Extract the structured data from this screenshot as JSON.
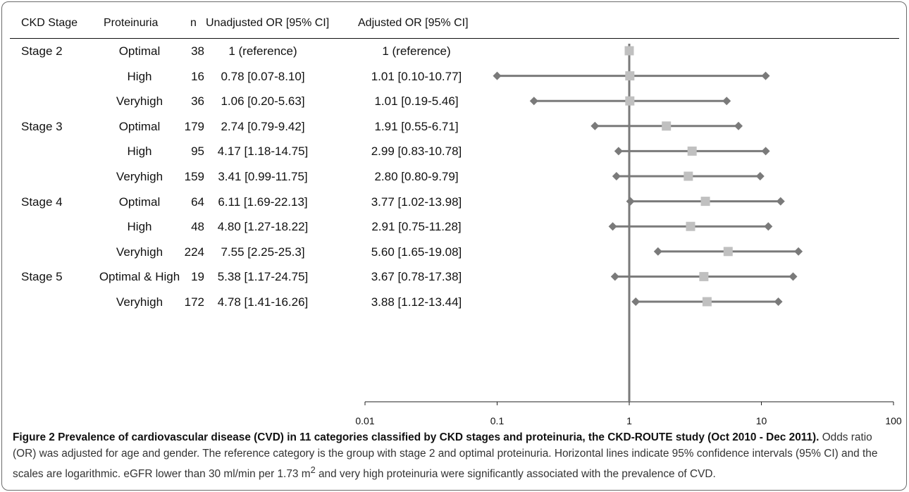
{
  "headers": {
    "stage": "CKD Stage",
    "proteinuria": "Proteinuria",
    "n": "n",
    "unadjusted": "Unadjusted OR [95% CI]",
    "adjusted": "Adjusted OR [95% CI]"
  },
  "rows": [
    {
      "stage": "Stage 2",
      "proteinuria": "Optimal",
      "n": "38",
      "unadjusted": "1 (reference)",
      "adjusted": "1 (reference)"
    },
    {
      "stage": "",
      "proteinuria": "High",
      "n": "16",
      "unadjusted": "0.78 [0.07-8.10]",
      "adjusted": "1.01 [0.10-10.77]"
    },
    {
      "stage": "",
      "proteinuria": "Veryhigh",
      "n": "36",
      "unadjusted": "1.06 [0.20-5.63]",
      "adjusted": "1.01 [0.19-5.46]"
    },
    {
      "stage": "Stage 3",
      "proteinuria": "Optimal",
      "n": "179",
      "unadjusted": "2.74 [0.79-9.42]",
      "adjusted": "1.91 [0.55-6.71]"
    },
    {
      "stage": "",
      "proteinuria": "High",
      "n": "95",
      "unadjusted": "4.17 [1.18-14.75]",
      "adjusted": "2.99 [0.83-10.78]"
    },
    {
      "stage": "",
      "proteinuria": "Veryhigh",
      "n": "159",
      "unadjusted": "3.41 [0.99-11.75]",
      "adjusted": "2.80  [0.80-9.79]"
    },
    {
      "stage": "Stage 4",
      "proteinuria": "Optimal",
      "n": "64",
      "unadjusted": "6.11 [1.69-22.13]",
      "adjusted": "3.77 [1.02-13.98]"
    },
    {
      "stage": "",
      "proteinuria": "High",
      "n": "48",
      "unadjusted": "4.80 [1.27-18.22]",
      "adjusted": "2.91 [0.75-11.28]"
    },
    {
      "stage": "",
      "proteinuria": "Veryhigh",
      "n": "224",
      "unadjusted": "7.55 [2.25-25.3]",
      "adjusted": "5.60 [1.65-19.08]"
    },
    {
      "stage": "Stage 5",
      "proteinuria": "Optimal & High",
      "n": "19",
      "unadjusted": "5.38 [1.17-24.75]",
      "adjusted": "3.67 [0.78-17.38]"
    },
    {
      "stage": "",
      "proteinuria": "Veryhigh",
      "n": "172",
      "unadjusted": "4.78 [1.41-16.26]",
      "adjusted": "3.88 [1.12-13.44]"
    }
  ],
  "chart_data": {
    "type": "scatter",
    "x_scale": "log",
    "xlim": [
      0.01,
      100
    ],
    "x_ticks": [
      0.01,
      0.1,
      1,
      10,
      100
    ],
    "x_tick_labels": [
      "0.01",
      "0.1",
      "1",
      "10",
      "100"
    ],
    "reference_line": 1,
    "grid": false,
    "categories": [
      "Stage 2 Optimal",
      "Stage 2 High",
      "Stage 2 Veryhigh",
      "Stage 3 Optimal",
      "Stage 3 High",
      "Stage 3 Veryhigh",
      "Stage 4 Optimal",
      "Stage 4 High",
      "Stage 4 Veryhigh",
      "Stage 5 Optimal & High",
      "Stage 5 Veryhigh"
    ],
    "series": [
      {
        "point": [
          1,
          1.01,
          1.01,
          1.91,
          2.99,
          2.8,
          3.77,
          2.91,
          5.6,
          3.67,
          3.88
        ],
        "lower": [
          null,
          0.1,
          0.19,
          0.55,
          0.83,
          0.8,
          1.02,
          0.75,
          1.65,
          0.78,
          1.12
        ],
        "upper": [
          null,
          10.77,
          5.46,
          6.71,
          10.78,
          9.79,
          13.98,
          11.28,
          19.08,
          17.38,
          13.44
        ]
      }
    ],
    "colors": {
      "interval": "#7a7a7a",
      "point": "#c0c0c0",
      "reference": "#7a7a7a"
    }
  },
  "caption": {
    "title": "Figure 2 Prevalence of cardiovascular disease (CVD) in 11 categories classified by CKD stages and proteinuria, the CKD-ROUTE study (Oct 2010 - Dec 2011).",
    "body_before_sup": " Odds ratio (OR) was adjusted for age and gender. The reference category is the group with stage 2 and optimal proteinuria. Horizontal lines indicate 95% confidence intervals (95% CI) and the scales are logarithmic. eGFR lower than 30 ml/min per 1.73 m",
    "sup": "2",
    "body_after_sup": " and very high proteinuria were significantly associated with the prevalence of CVD."
  }
}
